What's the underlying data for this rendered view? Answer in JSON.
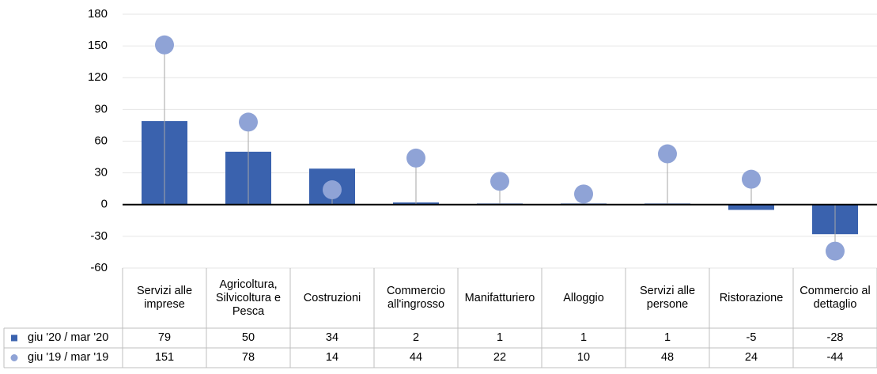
{
  "chart_data": {
    "type": "bar",
    "categories": [
      "Servizi alle imprese",
      "Agricoltura, Silvicoltura e Pesca",
      "Costruzioni",
      "Commercio all'ingrosso",
      "Manifatturiero",
      "Alloggio",
      "Servizi alle persone",
      "Ristorazione",
      "Commercio al dettaglio"
    ],
    "series": [
      {
        "name": "giu '20 / mar '20",
        "type": "bar",
        "color": "#3a62ae",
        "values": [
          79,
          50,
          34,
          2,
          1,
          1,
          1,
          -5,
          -28
        ]
      },
      {
        "name": "giu '19 / mar '19",
        "type": "dot",
        "color": "#8fa3d6",
        "values": [
          151,
          78,
          14,
          44,
          22,
          10,
          48,
          24,
          -44
        ]
      }
    ],
    "ylim": [
      -60,
      180
    ],
    "yticks": [
      -60,
      -30,
      0,
      30,
      60,
      90,
      120,
      150,
      180
    ],
    "grid": true,
    "data_table": true
  }
}
